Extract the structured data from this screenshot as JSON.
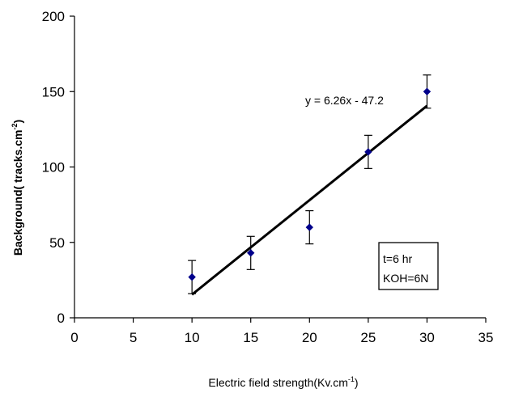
{
  "chart_data": {
    "type": "scatter",
    "xlabel": "Electric field strength(Kv.cm",
    "xlabel_sup": "-1",
    "xlabel_end": ")",
    "ylabel": "Background( tracks.cm",
    "ylabel_sup": "-2",
    "ylabel_end": ")",
    "xlim": [
      0,
      35
    ],
    "ylim": [
      0,
      200
    ],
    "xticks": [
      0,
      5,
      10,
      15,
      20,
      25,
      30,
      35
    ],
    "yticks": [
      0,
      50,
      100,
      150,
      200
    ],
    "grid": false,
    "series": [
      {
        "x": [
          10,
          15,
          20,
          25,
          30
        ],
        "y": [
          27,
          43,
          60,
          110,
          150
        ],
        "yerr": [
          11,
          11,
          11,
          11,
          11
        ],
        "color": "#00008b"
      }
    ],
    "trendline": {
      "slope": 6.26,
      "intercept": -47.2,
      "x_range": [
        10,
        30
      ],
      "label": "y = 6.26x - 47.2"
    },
    "annotation_box": [
      "t=6 hr",
      "KOH=6N"
    ]
  }
}
